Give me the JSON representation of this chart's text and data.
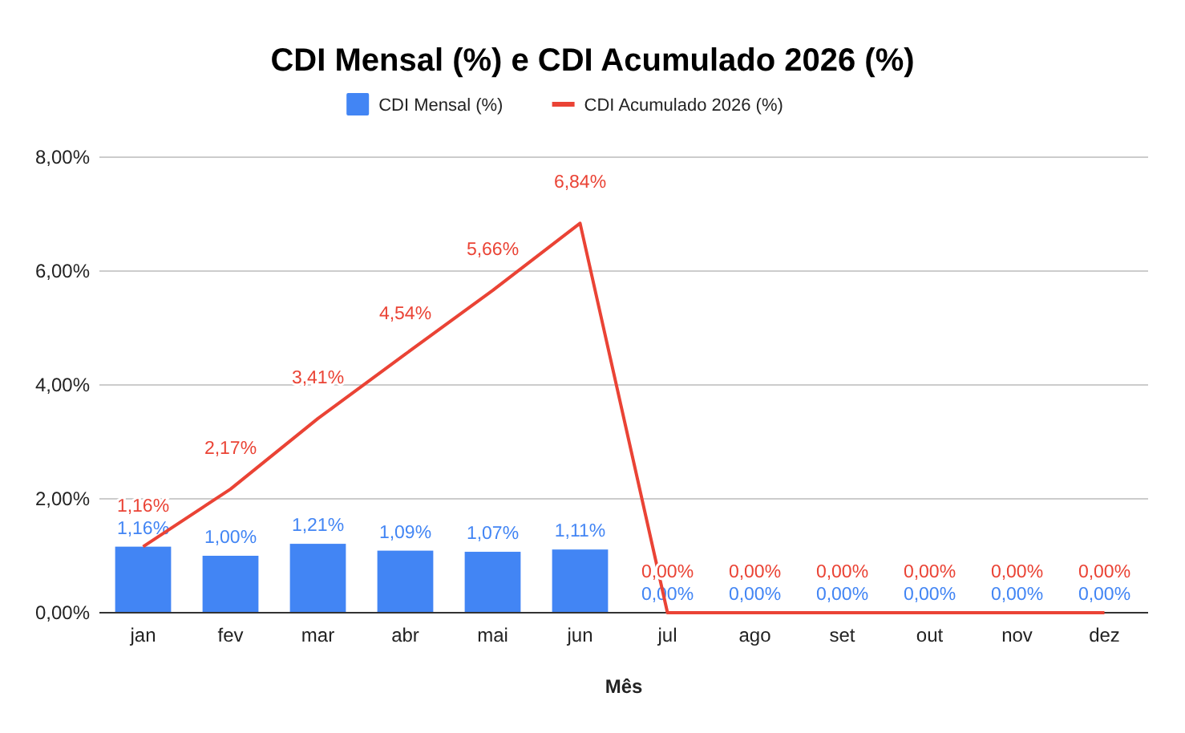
{
  "chart_data": {
    "type": "bar",
    "title": "CDI Mensal (%) e CDI Acumulado 2026 (%)",
    "xlabel": "Mês",
    "categories": [
      "jan",
      "fev",
      "mar",
      "abr",
      "mai",
      "jun",
      "jul",
      "ago",
      "set",
      "out",
      "nov",
      "dez"
    ],
    "series": [
      {
        "name": "CDI Mensal (%)",
        "color": "#4285f4",
        "values": [
          1.16,
          1.0,
          1.21,
          1.09,
          1.07,
          1.11,
          0,
          0,
          0,
          0,
          0,
          0
        ],
        "value_labels": [
          "1,16%",
          "1,00%",
          "1,21%",
          "1,09%",
          "1,07%",
          "1,11%",
          "0,00%",
          "0,00%",
          "0,00%",
          "0,00%",
          "0,00%",
          "0,00%"
        ]
      },
      {
        "name": "CDI Acumulado 2026 (%)",
        "type": "line",
        "color": "#ea4335",
        "values": [
          1.16,
          2.17,
          3.41,
          4.54,
          5.66,
          6.84,
          0,
          0,
          0,
          0,
          0,
          0
        ],
        "value_labels": [
          "1,16%",
          "2,17%",
          "3,41%",
          "4,54%",
          "5,66%",
          "6,84%",
          "0,00%",
          "0,00%",
          "0,00%",
          "0,00%",
          "0,00%",
          "0,00%"
        ]
      }
    ],
    "ylim": [
      0,
      8
    ],
    "yticks": [
      {
        "value": 0,
        "label": "0,00%"
      },
      {
        "value": 2,
        "label": "2,00%"
      },
      {
        "value": 4,
        "label": "4,00%"
      },
      {
        "value": 6,
        "label": "6,00%"
      },
      {
        "value": 8,
        "label": "8,00%"
      }
    ],
    "grid": "y",
    "legend": "top",
    "marker": "none",
    "line_style": "solid"
  }
}
